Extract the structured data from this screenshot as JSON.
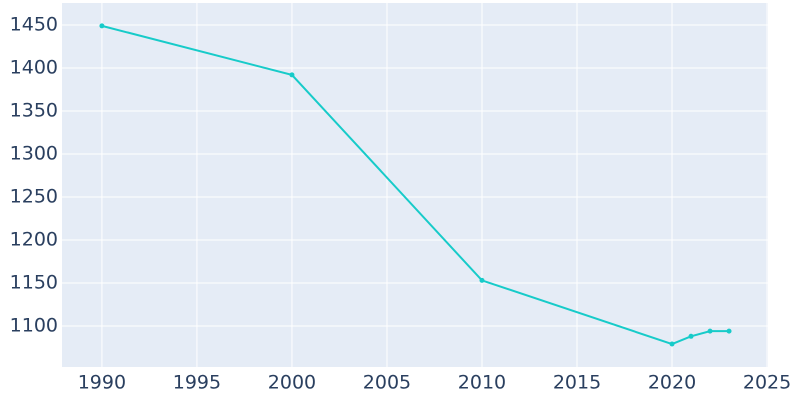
{
  "chart_data": {
    "type": "line",
    "x": [
      1990,
      2000,
      2010,
      2020,
      2021,
      2022,
      2023
    ],
    "series": [
      {
        "color": "#17cbc9",
        "values": [
          1449,
          1392,
          1153,
          1079,
          1088,
          1094,
          1094
        ]
      }
    ],
    "xlim": [
      1987.9,
      2025.05
    ],
    "xticks": [
      1990,
      1995,
      2000,
      2005,
      2010,
      2015,
      2020,
      2025
    ],
    "ylim": [
      1052.3,
      1475.6
    ],
    "yticks": [
      1100,
      1150,
      1200,
      1250,
      1300,
      1350,
      1400,
      1450
    ],
    "grid": true
  }
}
